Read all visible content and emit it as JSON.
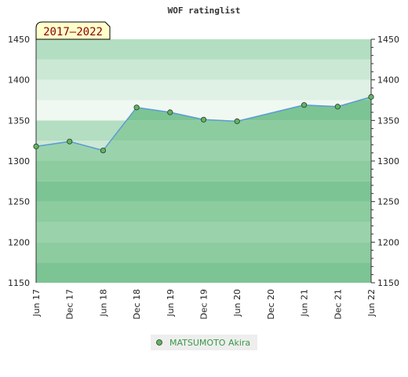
{
  "chart_data": {
    "type": "area",
    "title": "WOF ratinglist",
    "period_badge": "2017–2022",
    "xlabel": "",
    "ylabel": "",
    "ylim": [
      1150,
      1450
    ],
    "y_ticks": [
      1150,
      1200,
      1250,
      1300,
      1350,
      1400,
      1450
    ],
    "x_ticks": [
      "Jun 17",
      "Dec 17",
      "Jun 18",
      "Dec 18",
      "Jun 19",
      "Dec 19",
      "Jun 20",
      "Dec 20",
      "Jun 21",
      "Dec 21",
      "Jun 22"
    ],
    "series": [
      {
        "name": "MATSUMOTO Akira",
        "points": [
          {
            "x": "Jun 17",
            "y": 1318
          },
          {
            "x": "Dec 17",
            "y": 1324
          },
          {
            "x": "Jun 18",
            "y": 1313
          },
          {
            "x": "Dec 18",
            "y": 1366
          },
          {
            "x": "Jun 19",
            "y": 1360
          },
          {
            "x": "Dec 19",
            "y": 1351
          },
          {
            "x": "Jun 20",
            "y": 1349
          },
          {
            "x": "Jun 21",
            "y": 1369
          },
          {
            "x": "Dec 21",
            "y": 1367
          },
          {
            "x": "Jun 22",
            "y": 1379
          }
        ]
      }
    ],
    "grid": true,
    "legend": "bottom-center",
    "colors": {
      "line": "#5b9bd5",
      "marker": "#5cb85c",
      "fill": "#7cc494",
      "badge_bg": "#ffffcc",
      "legend_text": "#3a9a4a"
    }
  }
}
